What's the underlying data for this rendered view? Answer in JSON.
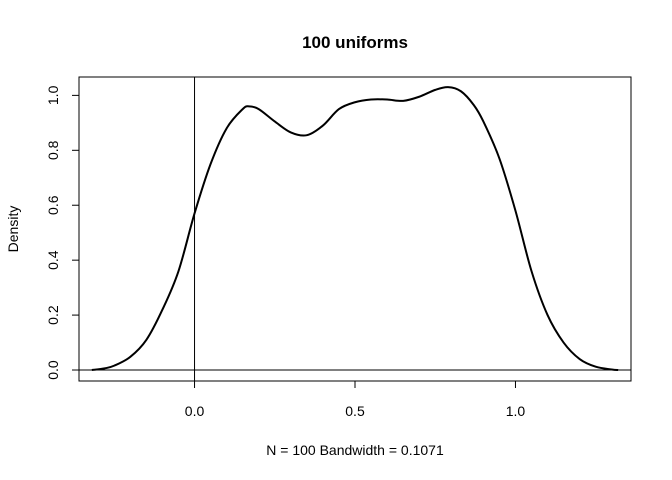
{
  "chart_data": {
    "type": "line",
    "title": "100 uniforms",
    "xlabel": "N = 100   Bandwidth = 0.1071",
    "ylabel": "Density",
    "xlim": [
      -0.36,
      1.36
    ],
    "ylim": [
      -0.04,
      1.0669
    ],
    "x_ticks": [
      0.0,
      0.5,
      1.0
    ],
    "x_tick_labels": [
      "0.0",
      "0.5",
      "1.0"
    ],
    "y_ticks": [
      0.0,
      0.2,
      0.4,
      0.6,
      0.8,
      1.0
    ],
    "y_tick_labels": [
      "0.0",
      "0.2",
      "0.4",
      "0.6",
      "0.8",
      "1.0"
    ],
    "grid": false,
    "reference_lines": {
      "vertical_x": 0.0,
      "horizontal_y": 0.0
    },
    "series": [
      {
        "color": "#000000",
        "x": [
          -0.32,
          -0.28,
          -0.25,
          -0.2,
          -0.15,
          -0.1,
          -0.05,
          0.0,
          0.05,
          0.1,
          0.15,
          0.17,
          0.2,
          0.25,
          0.3,
          0.35,
          0.4,
          0.45,
          0.5,
          0.55,
          0.6,
          0.65,
          0.7,
          0.75,
          0.79,
          0.83,
          0.87,
          0.9,
          0.95,
          1.0,
          1.05,
          1.1,
          1.15,
          1.2,
          1.25,
          1.3,
          1.32
        ],
        "y": [
          0.0,
          0.006,
          0.016,
          0.048,
          0.11,
          0.22,
          0.36,
          0.57,
          0.75,
          0.88,
          0.95,
          0.96,
          0.95,
          0.905,
          0.865,
          0.855,
          0.89,
          0.95,
          0.975,
          0.985,
          0.985,
          0.98,
          0.995,
          1.02,
          1.03,
          1.015,
          0.965,
          0.905,
          0.77,
          0.58,
          0.36,
          0.2,
          0.1,
          0.04,
          0.012,
          0.002,
          0.0
        ]
      }
    ]
  }
}
